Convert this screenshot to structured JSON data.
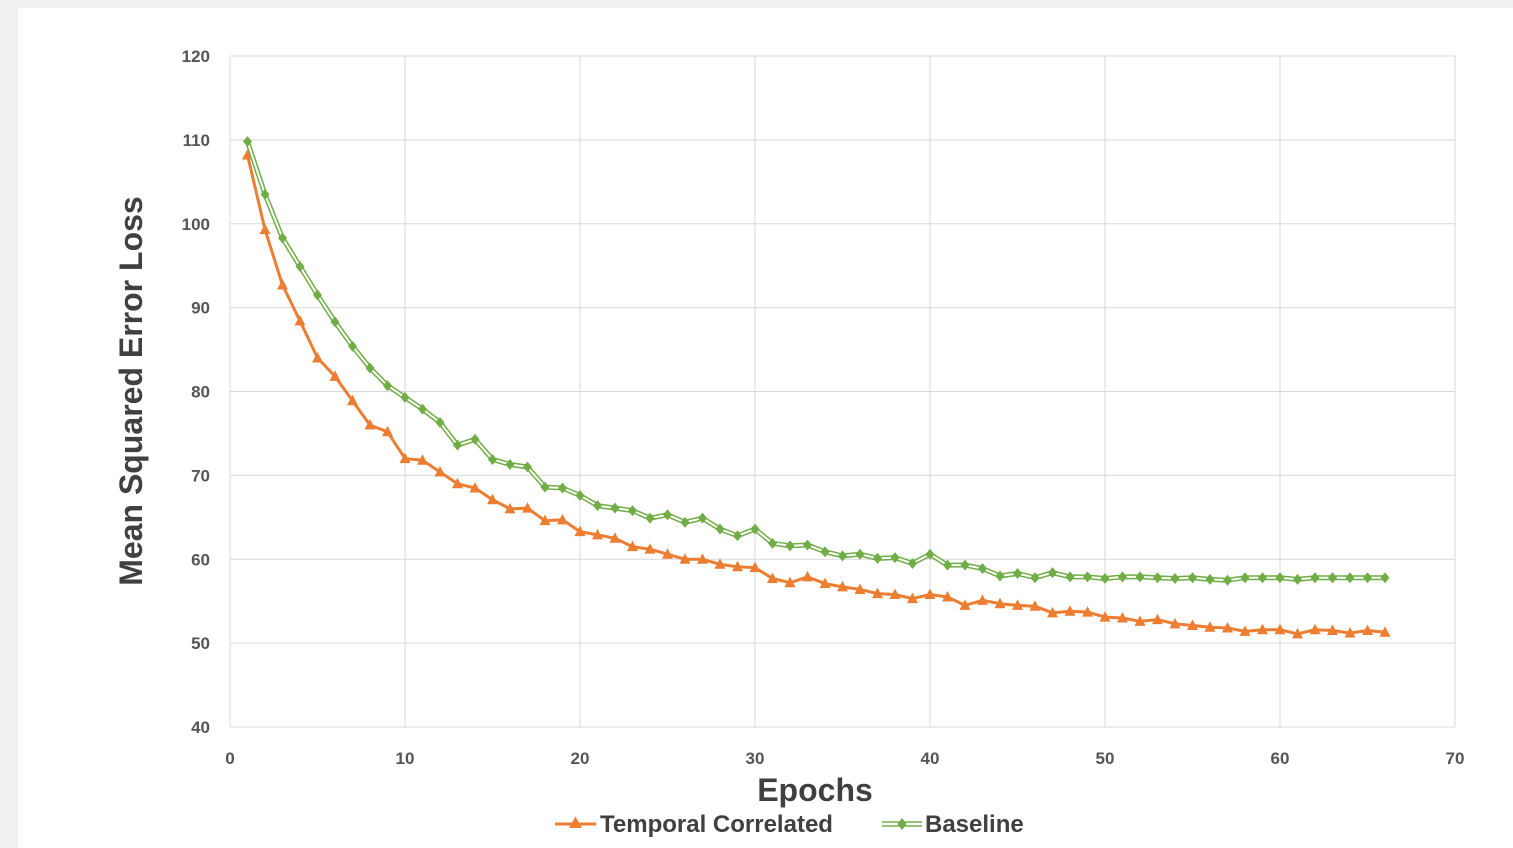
{
  "chart_data": {
    "type": "line",
    "xlabel": "Epochs",
    "ylabel": "Mean Squared Error Loss",
    "xlim": [
      0,
      70
    ],
    "ylim": [
      40,
      120
    ],
    "x_ticks": [
      "0",
      "10",
      "20",
      "30",
      "40",
      "50",
      "60",
      "70"
    ],
    "y_ticks": [
      "40",
      "50",
      "60",
      "70",
      "80",
      "90",
      "100",
      "110",
      "120"
    ],
    "grid": true,
    "legend_position": "bottom",
    "series": [
      {
        "name": "Temporal Correlated",
        "color": "#ed7d31",
        "marker": "triangle",
        "x": [
          1,
          2,
          3,
          4,
          5,
          6,
          7,
          8,
          9,
          10,
          11,
          12,
          13,
          14,
          15,
          16,
          17,
          18,
          19,
          20,
          21,
          22,
          23,
          24,
          25,
          26,
          27,
          28,
          29,
          30,
          31,
          32,
          33,
          34,
          35,
          36,
          37,
          38,
          39,
          40,
          41,
          42,
          43,
          44,
          45,
          46,
          47,
          48,
          49,
          50,
          51,
          52,
          53,
          54,
          55,
          56,
          57,
          58,
          59,
          60,
          61,
          62,
          63,
          64,
          65,
          66
        ],
        "values": [
          108.2,
          99.3,
          92.7,
          88.4,
          84.0,
          81.8,
          78.9,
          76.0,
          75.2,
          72.0,
          71.8,
          70.4,
          69.0,
          68.5,
          67.1,
          66.0,
          66.1,
          64.6,
          64.7,
          63.3,
          62.9,
          62.5,
          61.5,
          61.2,
          60.6,
          60.0,
          60.0,
          59.4,
          59.1,
          59.0,
          57.7,
          57.2,
          57.9,
          57.1,
          56.7,
          56.4,
          55.9,
          55.8,
          55.3,
          55.8,
          55.5,
          54.5,
          55.1,
          54.7,
          54.5,
          54.4,
          53.6,
          53.8,
          53.7,
          53.1,
          53.0,
          52.6,
          52.8,
          52.3,
          52.1,
          51.9,
          51.8,
          51.4,
          51.6,
          51.6,
          51.1,
          51.6,
          51.5,
          51.2,
          51.5,
          51.3
        ]
      },
      {
        "name": "Baseline",
        "color": "#70ad47",
        "marker": "diamond",
        "x": [
          1,
          2,
          3,
          4,
          5,
          6,
          7,
          8,
          9,
          10,
          11,
          12,
          13,
          14,
          15,
          16,
          17,
          18,
          19,
          20,
          21,
          22,
          23,
          24,
          25,
          26,
          27,
          28,
          29,
          30,
          31,
          32,
          33,
          34,
          35,
          36,
          37,
          38,
          39,
          40,
          41,
          42,
          43,
          44,
          45,
          46,
          47,
          48,
          49,
          50,
          51,
          52,
          53,
          54,
          55,
          56,
          57,
          58,
          59,
          60,
          61,
          62,
          63,
          64,
          65,
          66
        ],
        "values": [
          109.8,
          103.5,
          98.3,
          94.9,
          91.5,
          88.3,
          85.4,
          82.8,
          80.7,
          79.3,
          77.9,
          76.3,
          73.6,
          74.3,
          71.9,
          71.3,
          71.0,
          68.6,
          68.5,
          67.6,
          66.4,
          66.1,
          65.8,
          64.9,
          65.3,
          64.4,
          64.9,
          63.6,
          62.8,
          63.6,
          61.9,
          61.6,
          61.7,
          60.9,
          60.4,
          60.6,
          60.1,
          60.2,
          59.5,
          60.6,
          59.3,
          59.3,
          58.9,
          58.0,
          58.3,
          57.8,
          58.4,
          57.9,
          57.9,
          57.7,
          57.9,
          57.9,
          57.8,
          57.7,
          57.8,
          57.6,
          57.5,
          57.8,
          57.8,
          57.8,
          57.6,
          57.8,
          57.8,
          57.8,
          57.8,
          57.8
        ]
      }
    ]
  }
}
